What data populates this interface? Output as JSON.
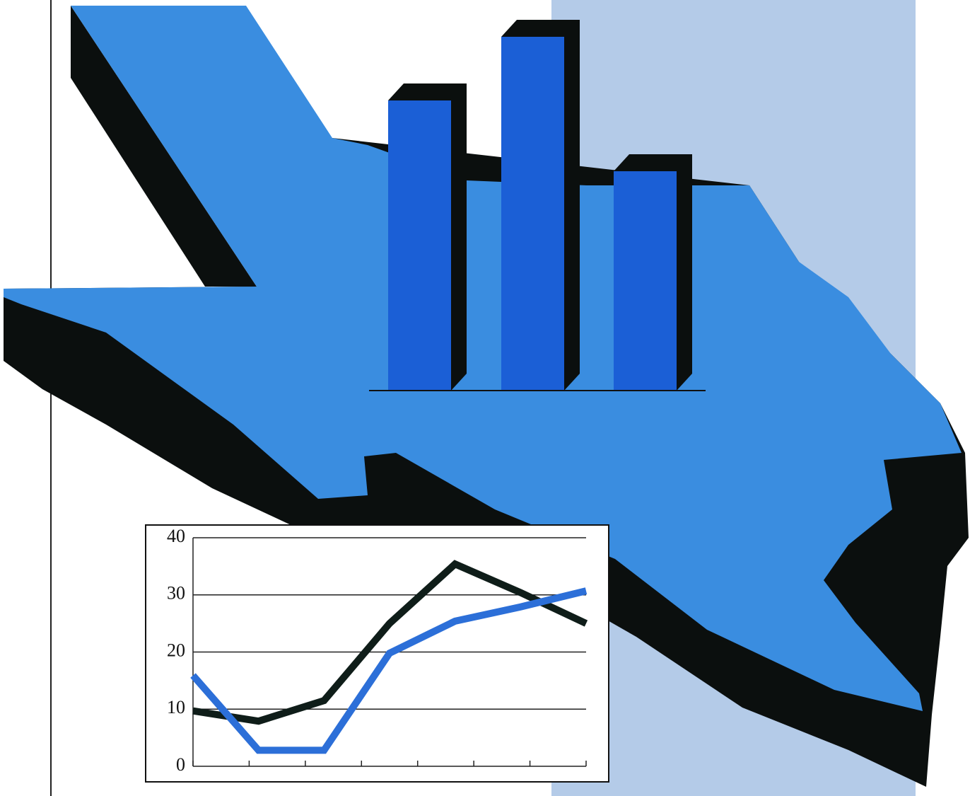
{
  "chart_data": [
    {
      "type": "bar",
      "values": [
        41,
        50,
        31
      ],
      "color": "#1b5fd6"
    },
    {
      "type": "line",
      "categories": [
        null,
        null,
        null,
        null,
        null,
        null,
        null
      ],
      "series": [
        {
          "color": "#0f1d19",
          "values": [
            9.7,
            7.9,
            11.5,
            25,
            35.4,
            30.4,
            25
          ]
        },
        {
          "color": "#2c6fd8",
          "values": [
            15.9,
            2.8,
            2.8,
            19.8,
            25.4,
            27.9,
            30.7
          ]
        }
      ],
      "ylim": [
        0,
        40
      ],
      "yticks": [
        0,
        10,
        20,
        30,
        40
      ],
      "grid": true
    }
  ]
}
